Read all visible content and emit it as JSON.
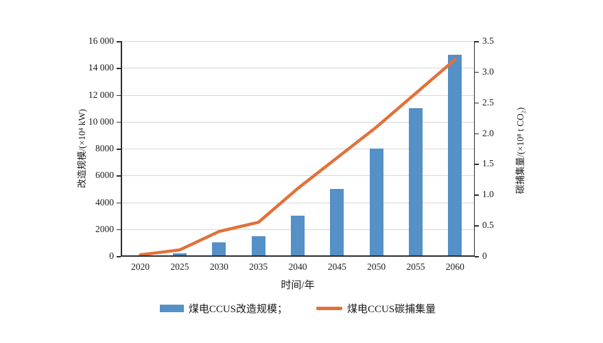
{
  "chart_data": {
    "type": "bar",
    "combo": "bar+line",
    "categories": [
      "2020",
      "2025",
      "2030",
      "2035",
      "2040",
      "2045",
      "2050",
      "2055",
      "2060"
    ],
    "series": [
      {
        "name": "煤电CCUS改造规模",
        "type": "bar",
        "axis": "left",
        "color": "#5590C7",
        "values": [
          0,
          200,
          1000,
          1500,
          3000,
          5000,
          8000,
          11000,
          15000
        ]
      },
      {
        "name": "煤电CCUS碳捕集量",
        "type": "line",
        "axis": "right",
        "color": "#E2713B",
        "values": [
          0.02,
          0.1,
          0.4,
          0.55,
          1.1,
          1.6,
          2.1,
          2.65,
          3.2
        ]
      }
    ],
    "left_axis": {
      "title": "改造规模/(×10⁴ kW)",
      "min": 0,
      "max": 16000,
      "step": 2000,
      "tick_labels_top_down": [
        "16 000",
        "14 000",
        "12 000",
        "10 000",
        "8000",
        "6000",
        "4000",
        "2000",
        "0"
      ]
    },
    "right_axis": {
      "title": "碳捕集量/(×10⁸ t CO₂)",
      "min": 0,
      "max": 3.5,
      "step": 0.5,
      "tick_labels_top_down": [
        "3.5",
        "3.0",
        "2.5",
        "2.0",
        "1.5",
        "1.0",
        "0.5",
        "0"
      ]
    },
    "x_axis": {
      "title": "时间/年"
    },
    "legend": [
      {
        "label": "煤电CCUS改造规模；",
        "swatch": "bar",
        "color": "#5590C7"
      },
      {
        "label": "煤电CCUS碳捕集量",
        "swatch": "line",
        "color": "#E2713B"
      }
    ],
    "grid": true,
    "gridline_color": "#D6D6D6",
    "axis_color": "#2B2B2B",
    "background": "#FFFFFF"
  }
}
